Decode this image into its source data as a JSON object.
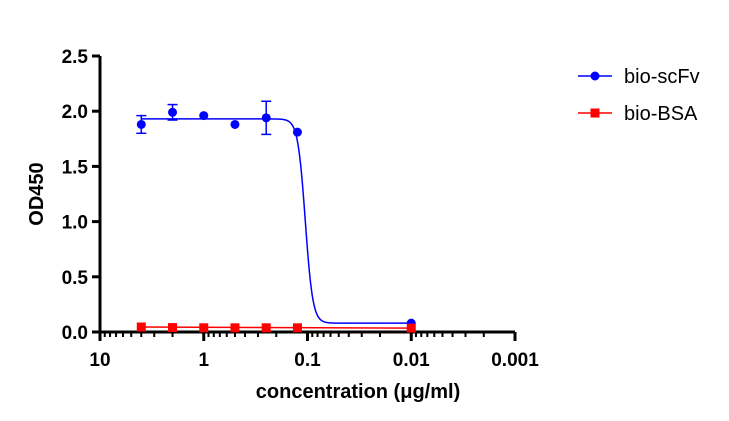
{
  "chart_data": {
    "type": "scatter",
    "title": "",
    "xlabel": "concentration (μg/ml)",
    "ylabel": "OD450",
    "x_scale": "log",
    "x_reversed": true,
    "xlim": [
      10,
      0.001
    ],
    "ylim": [
      0,
      2.5
    ],
    "x_ticks": [
      10,
      1,
      0.1,
      0.01,
      0.001
    ],
    "x_tick_labels": [
      "10",
      "1",
      "0.1",
      "0.01",
      "0.001"
    ],
    "y_ticks": [
      0,
      0.5,
      1,
      1.5,
      2,
      2.5
    ],
    "y_tick_labels": [
      "0.0",
      "0.5",
      "1.0",
      "1.5",
      "2.0",
      "2.5"
    ],
    "grid": false,
    "legend_position": "top-right",
    "series": [
      {
        "name": "bio-scFv",
        "color": "#0000ff",
        "marker": "circle",
        "fit": "sigmoid",
        "x": [
          4,
          2,
          1,
          0.5,
          0.25,
          0.125,
          0.01
        ],
        "y": [
          1.88,
          1.99,
          1.96,
          1.88,
          1.94,
          1.81,
          0.08
        ],
        "error": [
          0.08,
          0.07,
          0.02,
          0.02,
          0.15,
          0.02,
          0.01
        ]
      },
      {
        "name": "bio-BSA",
        "color": "#ff0000",
        "marker": "square",
        "fit": "flat",
        "x": [
          4,
          2,
          1,
          0.5,
          0.25,
          0.125,
          0.01
        ],
        "y": [
          0.045,
          0.04,
          0.038,
          0.038,
          0.038,
          0.038,
          0.035
        ],
        "error": [
          0,
          0,
          0,
          0,
          0,
          0,
          0
        ]
      }
    ]
  }
}
